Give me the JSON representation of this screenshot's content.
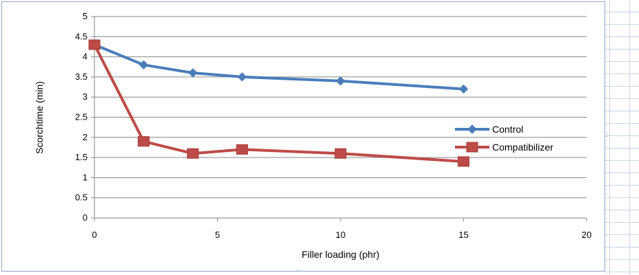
{
  "chart_data": {
    "type": "line",
    "title": "",
    "xlabel": "Filler loading (phr)",
    "ylabel": "Scorchtime (min)",
    "xlim": [
      0,
      20
    ],
    "ylim": [
      0,
      5
    ],
    "x_ticks": [
      "0",
      "5",
      "10",
      "15",
      "20"
    ],
    "y_ticks": [
      "0",
      "0.5",
      "1",
      "1.5",
      "2",
      "2.5",
      "3",
      "3.5",
      "4",
      "4.5",
      "5"
    ],
    "grid": true,
    "legend_position": "right",
    "series": [
      {
        "name": "Control",
        "color": "#4a7ebb",
        "marker": "diamond",
        "x": [
          0,
          2,
          4,
          6,
          10,
          15
        ],
        "y": [
          4.3,
          3.8,
          3.6,
          3.5,
          3.4,
          3.2
        ]
      },
      {
        "name": "Compatibilizer",
        "color": "#be4b48",
        "marker": "square",
        "x": [
          0,
          2,
          4,
          6,
          10,
          15
        ],
        "y": [
          4.3,
          1.9,
          1.6,
          1.7,
          1.6,
          1.4
        ]
      }
    ]
  }
}
